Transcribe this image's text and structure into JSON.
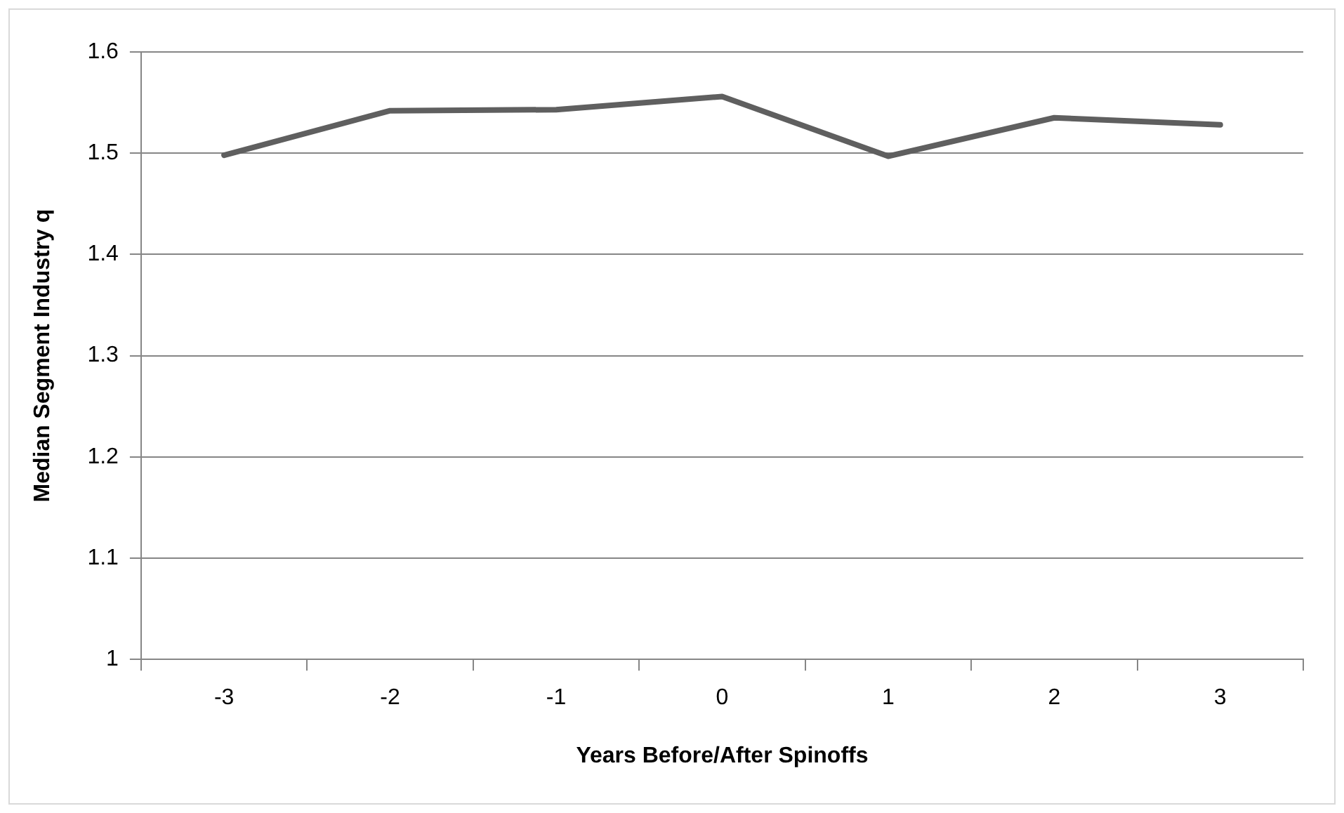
{
  "chart_data": {
    "type": "line",
    "xlabel": "Years Before/After Spinoffs",
    "ylabel": "Median Segment Industry q",
    "categories": [
      "-3",
      "-2",
      "-1",
      "0",
      "1",
      "2",
      "3"
    ],
    "series": [
      {
        "color": "#5f5f5f",
        "values": [
          1.498,
          1.542,
          1.543,
          1.556,
          1.497,
          1.535,
          1.528
        ]
      }
    ],
    "ylim": [
      1,
      1.6
    ],
    "yticks": [
      1,
      1.1,
      1.2,
      1.3,
      1.4,
      1.5,
      1.6
    ],
    "grid": "y",
    "legend": false,
    "marker": "none",
    "line_style": "solid"
  }
}
